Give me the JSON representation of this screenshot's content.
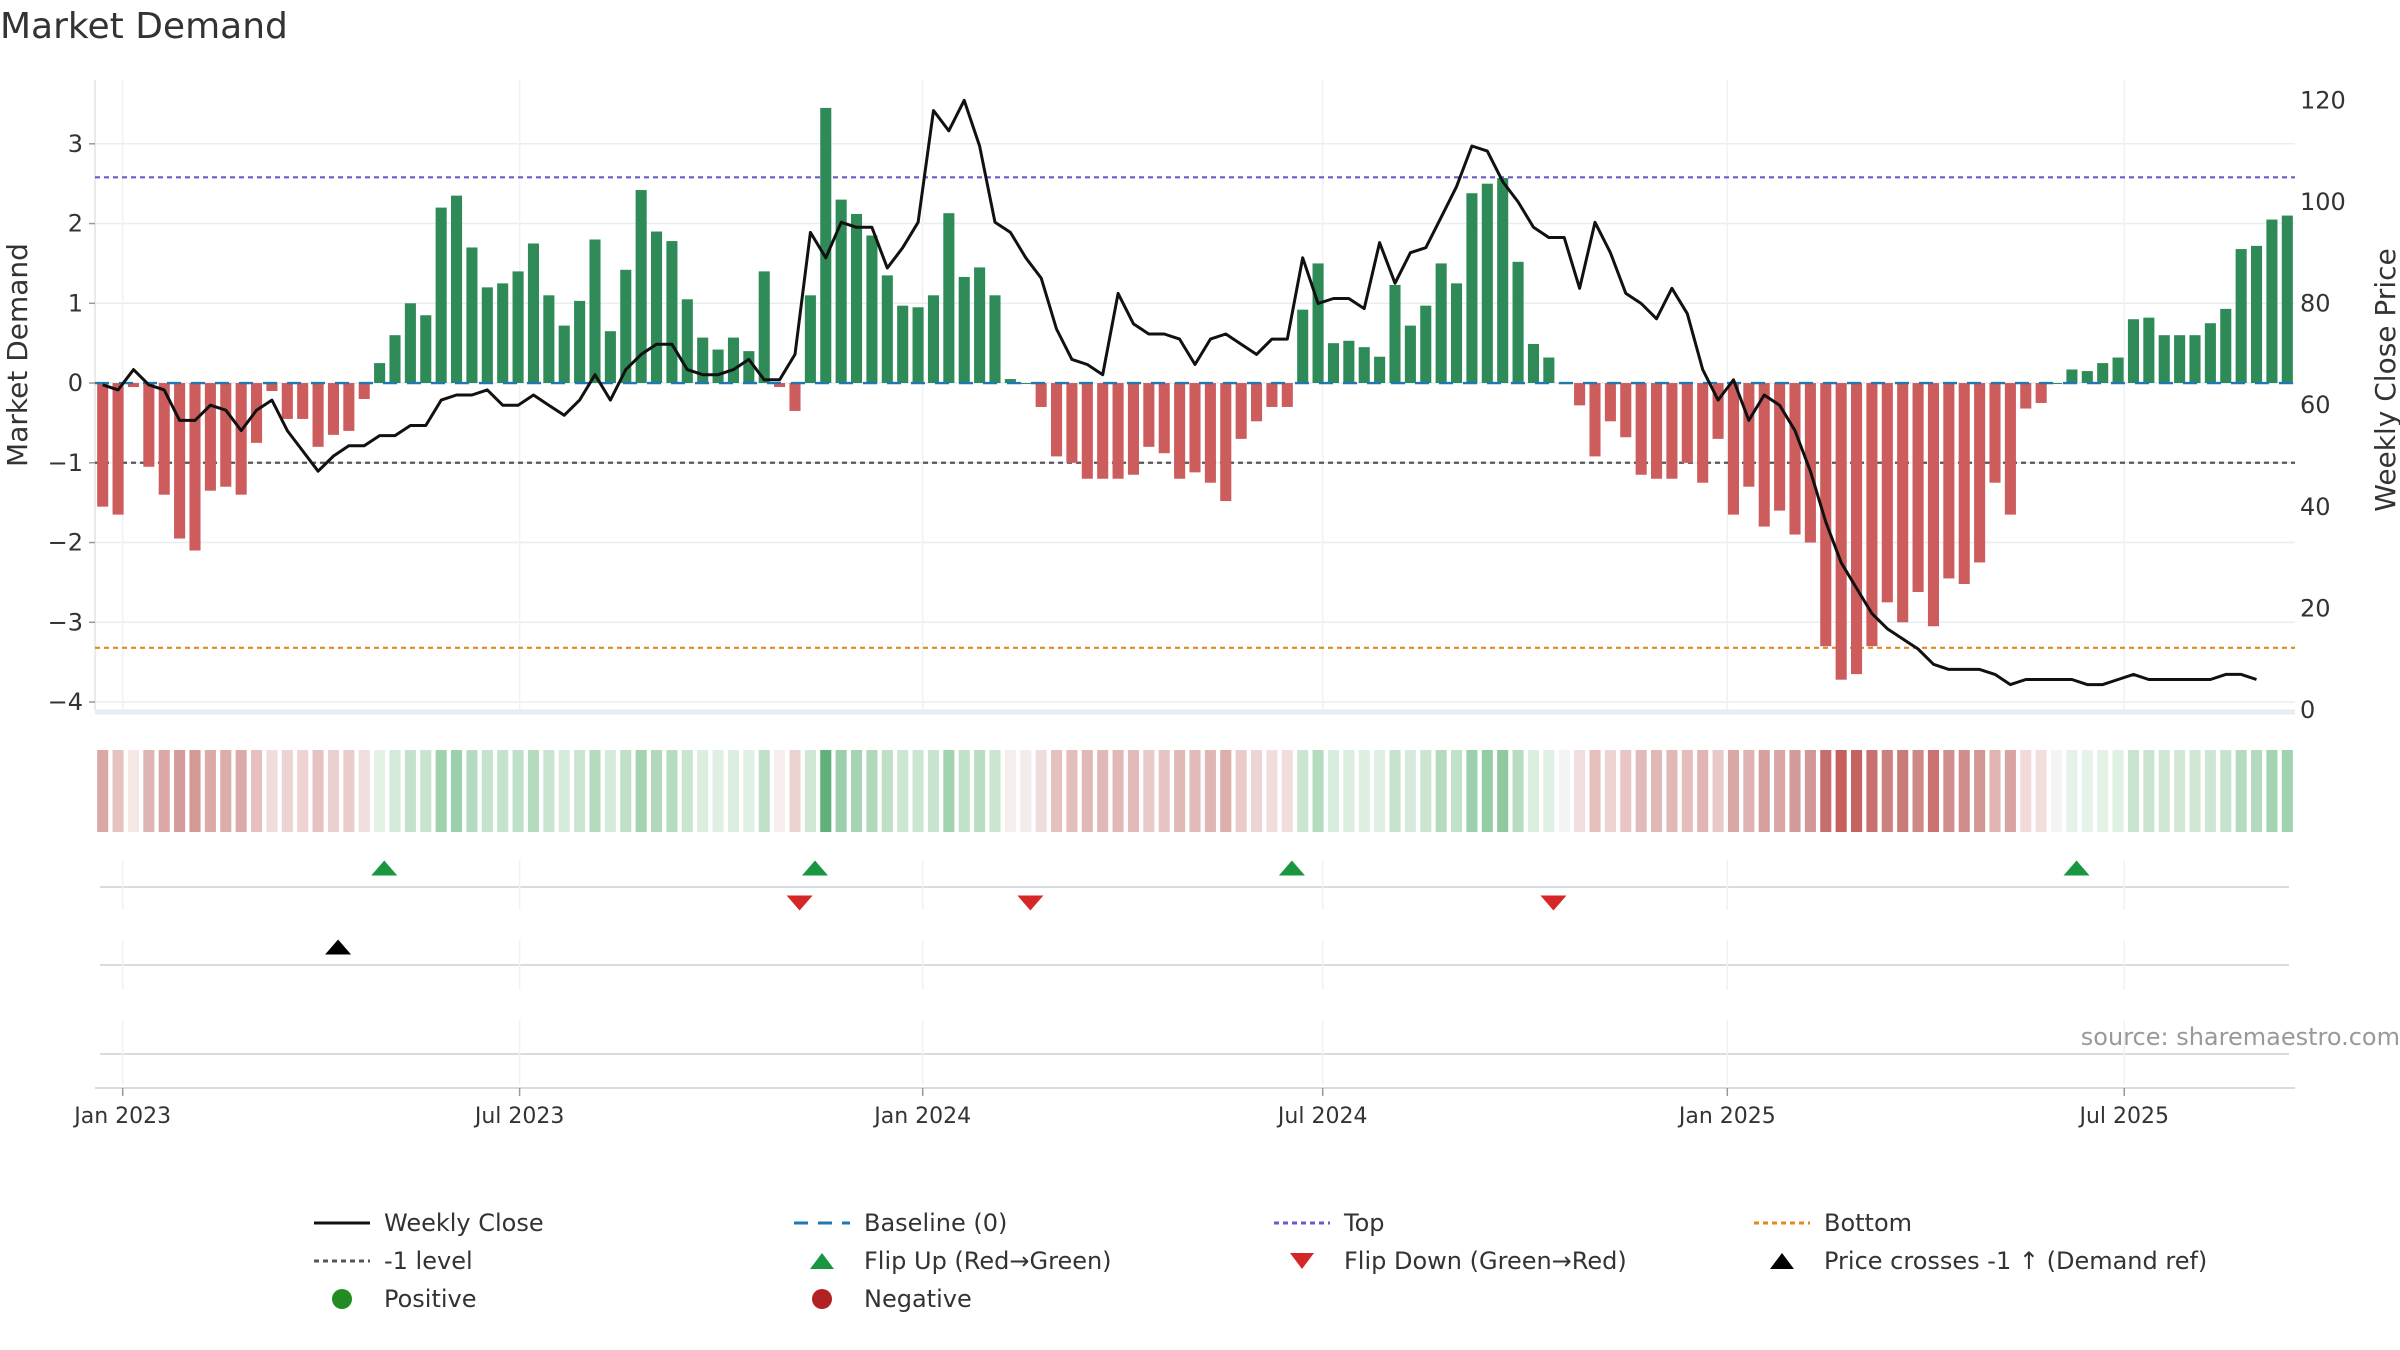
{
  "title": "Market Demand",
  "source": "source: sharemaestro.com",
  "colors": {
    "positive": "#2e8b57",
    "negative": "#cd5c5c",
    "price": "#111111",
    "baseline": "#1f77b4",
    "top": "#6a5acd",
    "bottom": "#e08a1e",
    "minus_one": "#555555",
    "flip_up": "#1a9641",
    "flip_down": "#d62728",
    "cross": "#000000",
    "legend_pos": "#228b22",
    "legend_neg": "#b22222"
  },
  "chart_data": {
    "type": "bar",
    "title": "Market Demand",
    "ylabel": "Market Demand",
    "y2label": "Weekly Close Price",
    "ylim": [
      -4.1,
      3.8
    ],
    "y2lim": [
      0,
      124
    ],
    "yticks": [
      3,
      2,
      1,
      0,
      -1,
      -2,
      -3,
      -4
    ],
    "ytick_labels": [
      "3",
      "2",
      "1",
      "0",
      "−1",
      "−2",
      "−3",
      "−4"
    ],
    "y2ticks": [
      120,
      100,
      80,
      60,
      40,
      20,
      0
    ],
    "x_start": "2022-12-23",
    "x_week_step": 7,
    "x_ticks": [
      {
        "label": "Jan 2023",
        "week": 1.3
      },
      {
        "label": "Jul 2023",
        "week": 27.1
      },
      {
        "label": "Jan 2024",
        "week": 53.3
      },
      {
        "label": "Jul 2024",
        "week": 79.3
      },
      {
        "label": "Jan 2025",
        "week": 105.6
      },
      {
        "label": "Jul 2025",
        "week": 131.4
      }
    ],
    "reference_lines": {
      "baseline": 0,
      "minus_one": -1,
      "top": 2.58,
      "bottom": -3.32
    },
    "demand": [
      -1.55,
      -1.65,
      -0.05,
      -1.05,
      -1.4,
      -1.95,
      -2.1,
      -1.35,
      -1.3,
      -1.4,
      -0.75,
      -0.1,
      -0.45,
      -0.45,
      -0.8,
      -0.65,
      -0.6,
      -0.2,
      0.25,
      0.6,
      1.0,
      0.85,
      2.2,
      2.35,
      1.7,
      1.2,
      1.25,
      1.4,
      1.75,
      1.1,
      0.72,
      1.03,
      1.8,
      0.65,
      1.42,
      2.42,
      1.9,
      1.78,
      1.05,
      0.57,
      0.42,
      0.57,
      0.4,
      1.4,
      -0.05,
      -0.35,
      1.1,
      3.45,
      2.3,
      2.12,
      1.85,
      1.35,
      0.97,
      0.95,
      1.1,
      2.13,
      1.33,
      1.45,
      1.1,
      0.05,
      0.0,
      -0.3,
      -0.92,
      -1.0,
      -1.2,
      -1.2,
      -1.2,
      -1.15,
      -0.8,
      -0.88,
      -1.2,
      -1.12,
      -1.25,
      -1.48,
      -0.7,
      -0.48,
      -0.3,
      -0.3,
      0.92,
      1.5,
      0.5,
      0.53,
      0.45,
      0.33,
      1.23,
      0.72,
      0.97,
      1.5,
      1.25,
      2.38,
      2.5,
      2.57,
      1.52,
      0.49,
      0.32,
      0.0,
      -0.28,
      -0.92,
      -0.48,
      -0.68,
      -1.15,
      -1.2,
      -1.2,
      -1.0,
      -1.25,
      -0.7,
      -1.65,
      -1.3,
      -1.8,
      -1.6,
      -1.9,
      -2.0,
      -3.3,
      -3.72,
      -3.65,
      -3.3,
      -2.75,
      -3.0,
      -2.62,
      -3.05,
      -2.45,
      -2.52,
      -2.25,
      -1.25,
      -1.65,
      -0.32,
      -0.25,
      0.0,
      0.17,
      0.15,
      0.25,
      0.32,
      0.8,
      0.82,
      0.6,
      0.6,
      0.6,
      0.75,
      0.93,
      1.68,
      1.72,
      2.05,
      2.1
    ],
    "price": [
      64,
      63,
      67,
      64,
      63,
      57,
      57,
      60,
      59,
      55,
      59,
      61,
      55,
      51,
      47,
      50,
      52,
      52,
      54,
      54,
      56,
      56,
      61,
      62,
      62,
      63,
      60,
      60,
      62,
      60,
      58,
      61,
      66,
      61,
      67,
      70,
      72,
      72,
      67,
      66,
      66,
      67,
      69,
      65,
      65,
      70,
      94,
      89,
      96,
      95,
      95,
      87,
      91,
      96,
      118,
      114,
      120,
      111,
      96,
      94,
      89,
      85,
      75,
      69,
      68,
      66,
      82,
      76,
      74,
      74,
      73,
      68,
      73,
      74,
      72,
      70,
      73,
      73,
      89,
      80,
      81,
      81,
      79,
      92,
      84,
      90,
      91,
      97,
      103,
      111,
      110,
      104,
      100,
      95,
      93,
      93,
      83,
      96,
      90,
      82,
      80,
      77,
      83,
      78,
      67,
      61,
      65,
      57,
      62,
      60,
      55,
      47,
      37,
      29,
      24,
      19,
      16,
      14,
      12,
      9,
      8,
      8,
      8,
      7,
      5,
      6,
      6,
      6,
      6,
      5,
      5,
      6,
      7,
      6,
      6,
      6,
      6,
      6,
      7,
      7,
      6
    ],
    "strip_base": [
      "#daa9a7",
      "#e5c2c0",
      "#f4e7e6",
      "#dfb5b4",
      "#daa9a7",
      "#d39b99",
      "#d29997",
      "#dba9a8",
      "#dcadab",
      "#dba9a7",
      "#e5c0bf",
      "#f0dcdb",
      "#edd4d3",
      "#edd4d3",
      "#e6c3c2",
      "#ead0cf",
      "#eaccca",
      "#f1dfde",
      "#e3f1e6",
      "#d3e9d9",
      "#c3e1cc",
      "#c9e3cf",
      "#a0d1ad",
      "#9ccfab",
      "#b4dbbf",
      "#c4e2cd",
      "#c5e2cc",
      "#bfe0c8",
      "#b4dbbe",
      "#c9e5d1",
      "#d5ebdb",
      "#cae5d0",
      "#b5dbbe",
      "#d6eadc",
      "#bfe0c7",
      "#a4d3b0",
      "#b0d9bc",
      "#b6dcbf",
      "#c9e4cf",
      "#dbeee0",
      "#dff0e3",
      "#dbeee0",
      "#e1f0e5",
      "#c1e0c8",
      "#f6eded",
      "#ebd3d1",
      "#d0e7d6",
      "#62b079",
      "#9ecfac",
      "#a6d3b3",
      "#b0d9bb",
      "#bfe0c7",
      "#cce6d3",
      "#cce6d3",
      "#c8e4cf",
      "#a2d2ae",
      "#c2e1c9",
      "#b9ddc3",
      "#cbe5d1",
      "#f6eded",
      "#f4ebeb",
      "#f0dcdb",
      "#e4c1bf",
      "#e3bebc",
      "#e0b8b6",
      "#e0b8b6",
      "#e0b8b6",
      "#e1bab9",
      "#e8cac8",
      "#e5c4c3",
      "#e0b8b6",
      "#e1bbb9",
      "#dfb6b4",
      "#dcaeac",
      "#e9ccca",
      "#edd5d3",
      "#f1dddc",
      "#f1dddc",
      "#cbe5d1",
      "#b5dbbf",
      "#d9ece0",
      "#daeddf",
      "#dcefe1",
      "#dff0e3",
      "#c7e3cd",
      "#d6eadc",
      "#cbe5d1",
      "#b5dbbf",
      "#c1e1c8",
      "#9ccfab",
      "#96cca4",
      "#90c99f",
      "#b7dcc1",
      "#dbeee0",
      "#e0f0e4",
      "#f4f4f4",
      "#f1dfdf",
      "#e5c0bf",
      "#edd3d2",
      "#e6c5c4",
      "#e1bab9",
      "#e0b8b6",
      "#e0b8b6",
      "#e3bebc",
      "#dfb6b4",
      "#e7c9c7",
      "#d9a8a6",
      "#dfb3b1",
      "#d5a09e",
      "#d9a6a4",
      "#d29b99",
      "#d19796",
      "#c56e6b",
      "#c45f5c",
      "#c56360",
      "#c77270",
      "#cc817f",
      "#ca7b78",
      "#ce8886",
      "#c9726f",
      "#d08f8d",
      "#cf8d8b",
      "#d29896",
      "#dfb6b4",
      "#d8a4a2",
      "#f0dbda",
      "#f1dfde",
      "#f4f4f4",
      "#e5f2e8",
      "#e6f3e9",
      "#e3f1e6",
      "#e0f0e4",
      "#c9e4cf",
      "#c9e4cf",
      "#d0e7d6",
      "#d1e8d6",
      "#d0e7d6",
      "#cde6d3",
      "#c6e3cd",
      "#b5dbbf",
      "#b3dabe",
      "#a4d3b1",
      "#a1d2ae"
    ],
    "flip_up_weeks": [
      18.3,
      46.3,
      77.3,
      128.3
    ],
    "flip_down_weeks": [
      45.3,
      60.3,
      94.3
    ],
    "price_cross_weeks": [
      15.3
    ]
  },
  "legend": [
    {
      "label": "Weekly Close",
      "symbol": "line-solid"
    },
    {
      "label": "Baseline (0)",
      "symbol": "line-dashed"
    },
    {
      "label": "Top",
      "symbol": "line-dotted-top"
    },
    {
      "label": "Bottom",
      "symbol": "line-dotted-bottom"
    },
    {
      "label": "-1 level",
      "symbol": "line-dotted-grey"
    },
    {
      "label": "Flip Up (Red→Green)",
      "symbol": "triangle-up-green"
    },
    {
      "label": "Flip Down (Green→Red)",
      "symbol": "triangle-down-red"
    },
    {
      "label": "Price crosses -1 ↑ (Demand ref)",
      "symbol": "triangle-up-black"
    },
    {
      "label": "Positive",
      "symbol": "dot-green"
    },
    {
      "label": "Negative",
      "symbol": "dot-red"
    }
  ]
}
